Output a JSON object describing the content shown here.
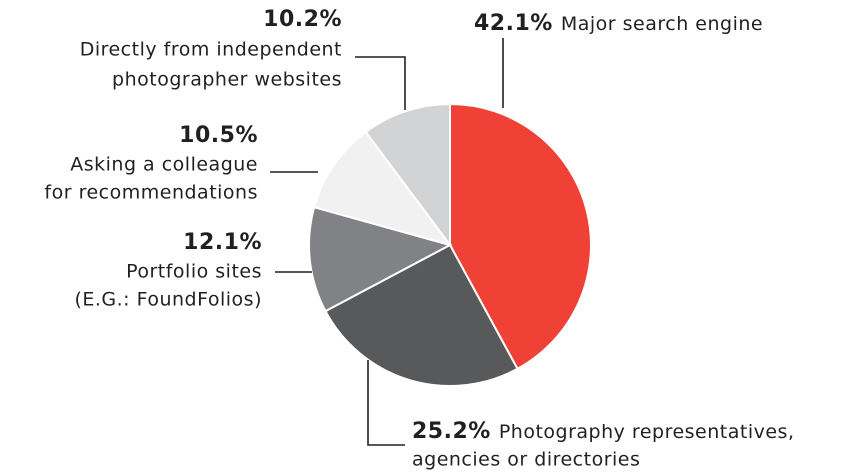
{
  "chart_data": {
    "type": "pie",
    "categories": [
      [
        "Major search engine"
      ],
      [
        "Photography representatives,",
        "agencies or directories"
      ],
      [
        "Portfolio sites",
        "(E.G.: FoundFolios)"
      ],
      [
        "Asking a colleague",
        "for recommendations"
      ],
      [
        "Directly from independent",
        "photographer websites"
      ]
    ],
    "values": [
      42.1,
      25.2,
      12.1,
      10.5,
      10.2
    ],
    "value_labels": [
      "42.1%",
      "25.2%",
      "12.1%",
      "10.5%",
      "10.2%"
    ],
    "colors": [
      "#ef4136",
      "#58595b",
      "#808285",
      "#f1f1f2",
      "#d1d3d4"
    ]
  }
}
